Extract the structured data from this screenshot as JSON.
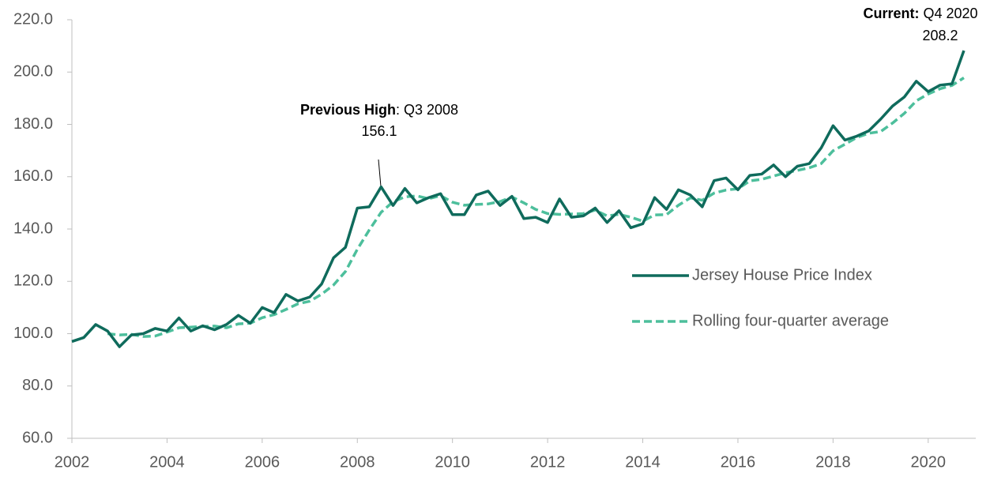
{
  "chart_data": {
    "type": "line",
    "x": [
      2002,
      2002.25,
      2002.5,
      2002.75,
      2003,
      2003.25,
      2003.5,
      2003.75,
      2004,
      2004.25,
      2004.5,
      2004.75,
      2005,
      2005.25,
      2005.5,
      2005.75,
      2006,
      2006.25,
      2006.5,
      2006.75,
      2007,
      2007.25,
      2007.5,
      2007.75,
      2008,
      2008.25,
      2008.5,
      2008.75,
      2009,
      2009.25,
      2009.5,
      2009.75,
      2010,
      2010.25,
      2010.5,
      2010.75,
      2011,
      2011.25,
      2011.5,
      2011.75,
      2012,
      2012.25,
      2012.5,
      2012.75,
      2013,
      2013.25,
      2013.5,
      2013.75,
      2014,
      2014.25,
      2014.5,
      2014.75,
      2015,
      2015.25,
      2015.5,
      2015.75,
      2016,
      2016.25,
      2016.5,
      2016.75,
      2017,
      2017.25,
      2017.5,
      2017.75,
      2018,
      2018.25,
      2018.5,
      2018.75,
      2019,
      2019.25,
      2019.5,
      2019.75,
      2020,
      2020.25,
      2020.5,
      2020.75
    ],
    "series": [
      {
        "name": "Jersey House Price Index",
        "color": "#0f6b5c",
        "dashed": false,
        "values": [
          97,
          98.5,
          103.5,
          101,
          95,
          99.5,
          100,
          102,
          101,
          106,
          101,
          103,
          101.5,
          103.5,
          107,
          104,
          110,
          108,
          115,
          112.5,
          114,
          119,
          129,
          133,
          148,
          148.5,
          156.1,
          149,
          155.5,
          150,
          152,
          153.5,
          145.5,
          145.5,
          153,
          154.5,
          149,
          152.5,
          144,
          144.5,
          142.5,
          151.5,
          144.5,
          145,
          148,
          142.5,
          147,
          140.5,
          142,
          152,
          147.5,
          155,
          153,
          148.5,
          158.5,
          159.5,
          155,
          160.5,
          161,
          164.5,
          160,
          164,
          165,
          171,
          179.5,
          174,
          175.5,
          177.5,
          182,
          187,
          190.5,
          196.5,
          192.5,
          195,
          195.5,
          208.2
        ]
      },
      {
        "name": "Rolling four-quarter average",
        "color": "#4dbf9c",
        "dashed": true,
        "values": [
          null,
          null,
          null,
          100,
          99.5,
          99.75,
          98.9,
          99.1,
          100.6,
          102.25,
          102.5,
          102.75,
          102.9,
          102.25,
          103.75,
          104,
          106.1,
          107.25,
          109.25,
          111.4,
          112.4,
          115.1,
          118.6,
          123.75,
          132.25,
          139.6,
          146.4,
          150.4,
          152.3,
          152.65,
          151.6,
          152.75,
          150.25,
          149.1,
          149.4,
          149.6,
          150.5,
          152.25,
          150,
          147.5,
          145.9,
          145.6,
          145.75,
          145.9,
          147.25,
          145,
          145.6,
          144.5,
          143,
          145.4,
          145.5,
          149.1,
          151.9,
          151,
          153.75,
          154.9,
          155.4,
          158.4,
          159,
          160.25,
          161.5,
          162.4,
          163.4,
          165,
          169.9,
          172.4,
          175,
          176.6,
          177.25,
          180.5,
          184.25,
          189,
          191.6,
          193.6,
          194.9,
          197.8
        ]
      }
    ],
    "xlim": [
      2002,
      2021
    ],
    "xticks": [
      2002,
      2004,
      2006,
      2008,
      2010,
      2012,
      2014,
      2016,
      2018,
      2020
    ],
    "ylim": [
      60,
      220
    ],
    "yticks": [
      {
        "value": 60,
        "label": "60.0"
      },
      {
        "value": 80,
        "label": "80.0"
      },
      {
        "value": 100,
        "label": "100.0"
      },
      {
        "value": 120,
        "label": "120.0"
      },
      {
        "value": 140,
        "label": "140.0"
      },
      {
        "value": 160,
        "label": "160.0"
      },
      {
        "value": 180,
        "label": "180.0"
      },
      {
        "value": 200,
        "label": "200.0"
      },
      {
        "value": 220,
        "label": "220.0"
      }
    ],
    "annotations": [
      {
        "bold": "Previous High",
        "text": ": Q3 2008",
        "value": 156.1
      },
      {
        "bold": "Current:",
        "text": " Q4 2020",
        "value": 208.2
      }
    ]
  }
}
